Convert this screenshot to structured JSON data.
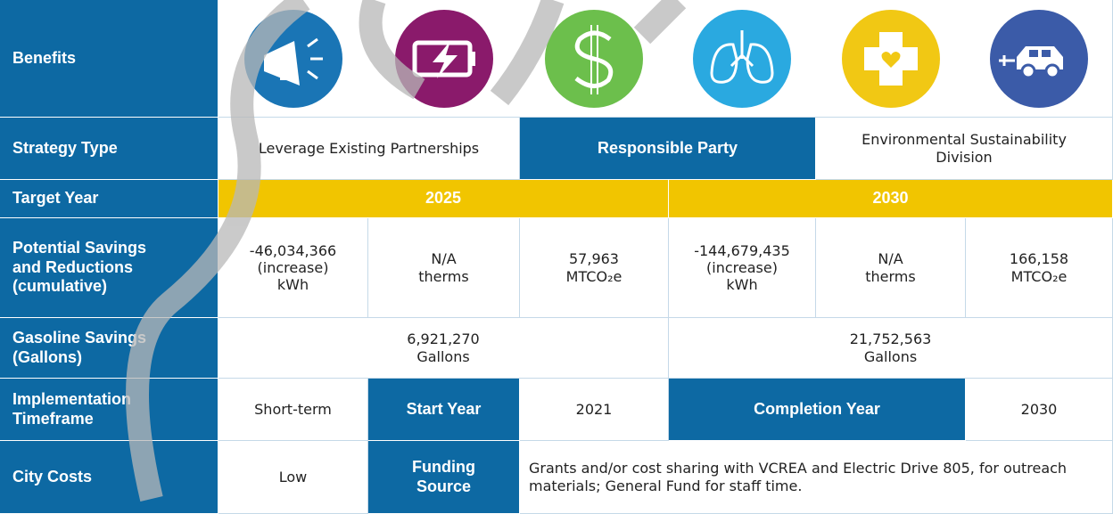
{
  "table": {
    "labels": [
      "Benefits",
      "Strategy Type",
      "Target Year",
      "Potential Savings and Reductions (cumulative)",
      "Gasoline Savings (Gallons)",
      "Implementation Timeframe",
      "City Costs"
    ],
    "strategy": {
      "value": "Leverage Existing Partnerships",
      "party_label": "Responsible Party",
      "party": "Environmental Sustainability Division"
    },
    "target": [
      "2025",
      "2030"
    ],
    "savings": [
      [
        "-46,034,366",
        "(increase)",
        "kWh"
      ],
      [
        "N/A",
        "therms"
      ],
      [
        "57,963",
        "MTCO₂e"
      ],
      [
        "-144,679,435",
        "(increase)",
        "kWh"
      ],
      [
        "N/A",
        "therms"
      ],
      [
        "166,158",
        "MTCO₂e"
      ]
    ],
    "gasoline": [
      [
        "6,921,270",
        "Gallons"
      ],
      [
        "21,752,563",
        "Gallons"
      ]
    ],
    "timeframe": {
      "value": "Short-term",
      "start_label": "Start Year",
      "start": "2021",
      "completion_label": "Completion Year",
      "completion": "2030"
    },
    "costs": {
      "value": "Low",
      "funding_label": "Funding Source",
      "funding": "Grants and/or cost sharing with VCREA and Electric Drive 805, for outreach materials; General Fund for staff time."
    }
  }
}
